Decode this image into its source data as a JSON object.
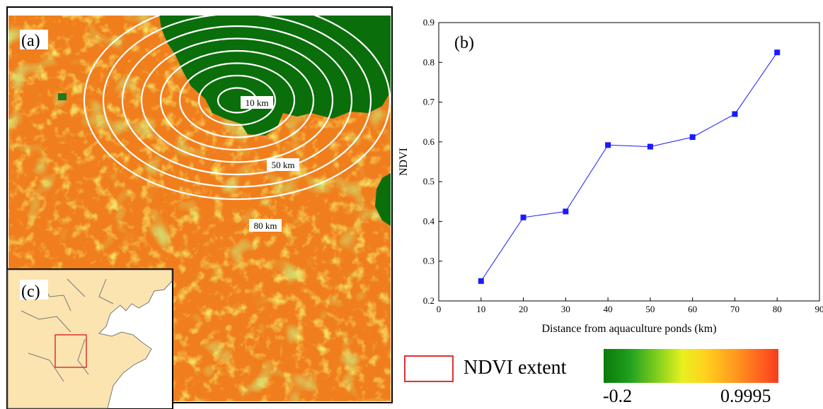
{
  "panels": {
    "a_label": "(a)",
    "b_label": "(b)",
    "c_label": "(c)"
  },
  "map": {
    "buffer_labels": [
      "10 km",
      "50 km",
      "80 km"
    ],
    "colors": {
      "sea": "#0a6e0a",
      "land_base": "#f07e1c",
      "land_light": "#e8c41e",
      "vegetation": "#a8d430",
      "rings": "#ffffff",
      "extent_box": "#e23030",
      "inset_land": "#fbe4b0"
    }
  },
  "legend": {
    "extent_label": "NDVI extent",
    "colorbar_min": "-0.2",
    "colorbar_max": "0.9995"
  },
  "chart_data": {
    "type": "line",
    "title": "",
    "xlabel": "Distance from aquaculture ponds (km)",
    "ylabel": "NDVI",
    "xlim": [
      0,
      90
    ],
    "ylim": [
      0.2,
      0.9
    ],
    "x_ticks": [
      0,
      10,
      20,
      30,
      40,
      50,
      60,
      70,
      80,
      90
    ],
    "y_ticks": [
      0.2,
      0.3,
      0.4,
      0.5,
      0.6,
      0.7,
      0.8,
      0.9
    ],
    "x": [
      10,
      20,
      30,
      40,
      50,
      60,
      70,
      80
    ],
    "y": [
      0.25,
      0.41,
      0.425,
      0.592,
      0.588,
      0.612,
      0.67,
      0.825
    ],
    "color": "#1a1aff",
    "grid": false
  }
}
